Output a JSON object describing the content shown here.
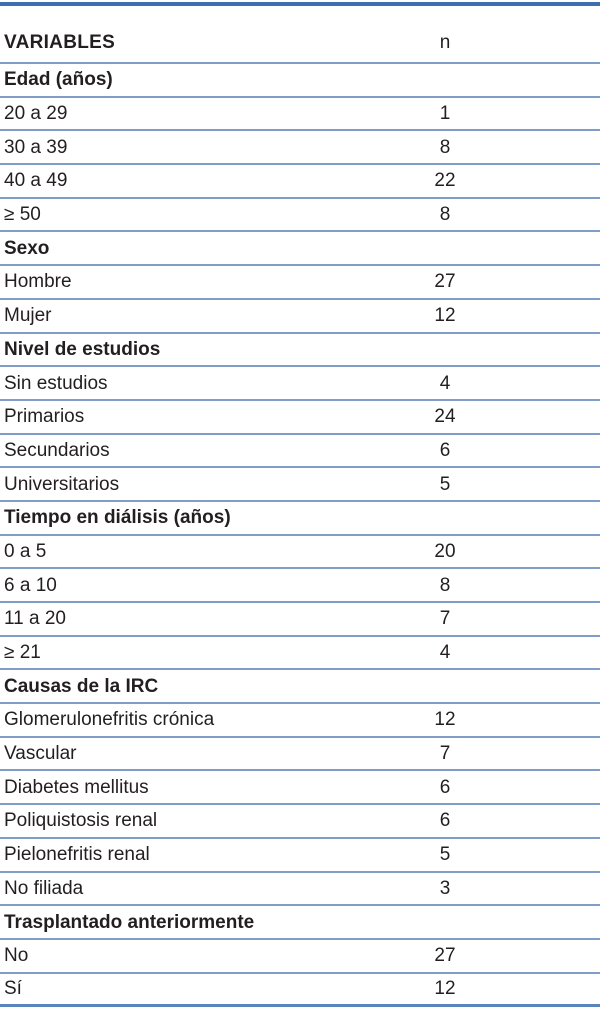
{
  "colors": {
    "rule-top": "#3f6fae",
    "rule": "#7f9dc7",
    "rule-bottom": "#5b84ba",
    "text": "#231f20"
  },
  "table": {
    "columns": {
      "variables": "VARIABLES",
      "n": "n"
    },
    "sections": [
      {
        "title": "Edad (años)",
        "rows": [
          {
            "label": "20 a 29",
            "n": 1
          },
          {
            "label": "30 a 39",
            "n": 8
          },
          {
            "label": "40 a 49",
            "n": 22
          },
          {
            "label": "≥ 50",
            "n": 8
          }
        ]
      },
      {
        "title": "Sexo",
        "rows": [
          {
            "label": "Hombre",
            "n": 27
          },
          {
            "label": "Mujer",
            "n": 12
          }
        ]
      },
      {
        "title": "Nivel de estudios",
        "rows": [
          {
            "label": "Sin estudios",
            "n": 4
          },
          {
            "label": "Primarios",
            "n": 24
          },
          {
            "label": "Secundarios",
            "n": 6
          },
          {
            "label": "Universitarios",
            "n": 5
          }
        ]
      },
      {
        "title": "Tiempo en diálisis (años)",
        "rows": [
          {
            "label": "0 a 5",
            "n": 20
          },
          {
            "label": "6 a 10",
            "n": 8
          },
          {
            "label": "11 a 20",
            "n": 7
          },
          {
            "label": "≥ 21",
            "n": 4
          }
        ]
      },
      {
        "title": "Causas de la IRC",
        "rows": [
          {
            "label": "Glomerulonefritis crónica",
            "n": 12
          },
          {
            "label": "Vascular",
            "n": 7
          },
          {
            "label": "Diabetes mellitus",
            "n": 6
          },
          {
            "label": "Poliquistosis renal",
            "n": 6
          },
          {
            "label": "Pielonefritis renal",
            "n": 5
          },
          {
            "label": "No filiada",
            "n": 3
          }
        ]
      },
      {
        "title": "Trasplantado anteriormente",
        "rows": [
          {
            "label": "No",
            "n": 27
          },
          {
            "label": "Sí",
            "n": 12
          }
        ]
      }
    ]
  }
}
